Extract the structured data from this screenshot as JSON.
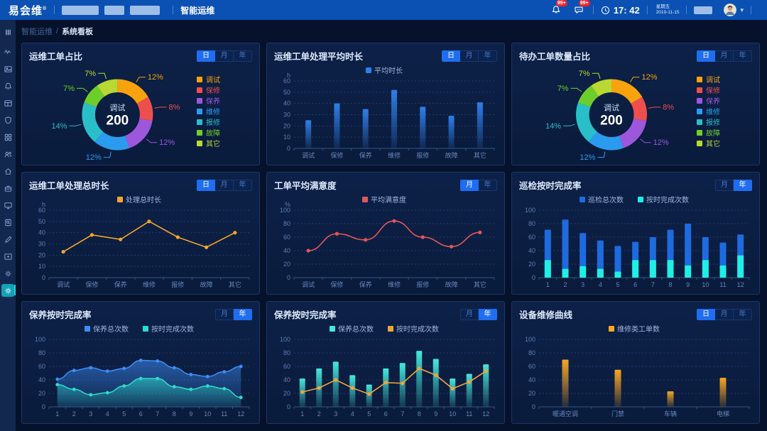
{
  "header": {
    "logo": "易会维",
    "logo_mark": "®",
    "nav_label": "智能运维",
    "bell_badge": "99+",
    "message_badge": "99+",
    "time": "17: 42",
    "weekday": "星期五",
    "date": "2019-11-15"
  },
  "breadcrumb": {
    "parent": "智能运维",
    "separator": "/",
    "current": "系统看板"
  },
  "sidebar": {
    "menu_icon": "menu-icon",
    "items": [
      {
        "icon": "activity-icon"
      },
      {
        "icon": "gallery-icon"
      },
      {
        "icon": "bell-icon"
      },
      {
        "icon": "table-icon"
      },
      {
        "icon": "shield-icon"
      },
      {
        "icon": "apps-icon"
      },
      {
        "icon": "team-icon"
      },
      {
        "icon": "home-icon"
      },
      {
        "icon": "briefcase-icon"
      },
      {
        "icon": "monitor-icon"
      },
      {
        "icon": "doc-search-icon"
      },
      {
        "icon": "pen-icon"
      },
      {
        "icon": "card-icon"
      },
      {
        "icon": "gear-icon"
      },
      {
        "icon": "gear-icon",
        "active": true
      }
    ]
  },
  "panels": [
    {
      "tabs": {
        "labels": [
          "日",
          "月",
          "年"
        ],
        "selected": 0
      }
    },
    {
      "tabs": {
        "labels": [
          "日",
          "月",
          "年"
        ],
        "selected": 0
      }
    },
    {
      "tabs": {
        "labels": [
          "日",
          "月",
          "年"
        ],
        "selected": 0
      }
    },
    {
      "tabs": {
        "labels": [
          "日",
          "月",
          "年"
        ],
        "selected": 0
      }
    },
    {
      "tabs": {
        "labels": [
          "月",
          "年"
        ],
        "selected": 0
      }
    },
    {
      "tabs": {
        "labels": [
          "月",
          "年"
        ],
        "selected": 1
      }
    },
    {
      "tabs": {
        "labels": [
          "月",
          "年"
        ],
        "selected": 1
      }
    },
    {
      "tabs": {
        "labels": [
          "月",
          "年"
        ],
        "selected": 1
      }
    },
    {
      "tabs": {
        "labels": [
          "日",
          "月",
          "年"
        ],
        "selected": 0
      }
    }
  ],
  "chart_data": [
    {
      "type": "pie",
      "title": "运维工单占比",
      "center_label": "调试",
      "center_value": "200",
      "legend_position": "right",
      "series": [
        {
          "name": "调试",
          "pct": 12,
          "color": "#F8A20D"
        },
        {
          "name": "保修",
          "pct": 8,
          "color": "#EF4F4C"
        },
        {
          "name": "保养",
          "pct": 12,
          "color": "#9C57DB"
        },
        {
          "name": "维修",
          "pct": 12,
          "color": "#2B9BEF"
        },
        {
          "name": "报修",
          "pct": 14,
          "color": "#29BFC9"
        },
        {
          "name": "故障",
          "pct": 7,
          "color": "#6ECE29"
        },
        {
          "name": "其它",
          "pct": 7,
          "color": "#B9D831"
        }
      ]
    },
    {
      "type": "bar",
      "title": "运维工单处理平均时长",
      "unit": "h",
      "categories": [
        "调试",
        "保修",
        "保养",
        "维修",
        "报修",
        "故障",
        "其它"
      ],
      "ylim": [
        0,
        60
      ],
      "ystep": 10,
      "series": [
        {
          "name": "平均时长",
          "color": "#2F7FEA",
          "render": "bar",
          "values": [
            25,
            40,
            35,
            52,
            37,
            29,
            41
          ]
        }
      ]
    },
    {
      "type": "pie",
      "title": "待办工单数量占比",
      "center_label": "调试",
      "center_value": "200",
      "legend_position": "right",
      "series": [
        {
          "name": "调试",
          "pct": 12,
          "color": "#F8A20D"
        },
        {
          "name": "保修",
          "pct": 8,
          "color": "#EF4F4C"
        },
        {
          "name": "保养",
          "pct": 12,
          "color": "#9C57DB"
        },
        {
          "name": "维修",
          "pct": 12,
          "color": "#2B9BEF"
        },
        {
          "name": "报修",
          "pct": 14,
          "color": "#29BFC9"
        },
        {
          "name": "故障",
          "pct": 7,
          "color": "#6ECE29"
        },
        {
          "name": "其它",
          "pct": 7,
          "color": "#B9D831"
        }
      ]
    },
    {
      "type": "line",
      "title": "运维工单处理总时长",
      "unit": "h",
      "smooth": false,
      "categories": [
        "调试",
        "保修",
        "保养",
        "维修",
        "报修",
        "故障",
        "其它"
      ],
      "ylim": [
        0,
        60
      ],
      "ystep": 10,
      "series": [
        {
          "name": "处理总时长",
          "color": "#F6A52C",
          "render": "line",
          "values": [
            23,
            38,
            34,
            50,
            36,
            27,
            40
          ]
        }
      ]
    },
    {
      "type": "line",
      "title": "工单平均满意度",
      "unit": "%",
      "smooth": true,
      "categories": [
        "调试",
        "保修",
        "保养",
        "维修",
        "报修",
        "故障",
        "其它"
      ],
      "ylim": [
        0,
        100
      ],
      "ystep": 20,
      "series": [
        {
          "name": "平均满意度",
          "color": "#E25757",
          "render": "line",
          "values": [
            40,
            65,
            56,
            84,
            60,
            46,
            67
          ]
        }
      ]
    },
    {
      "type": "bar",
      "title": "巡检按时完成率",
      "stacked": "overlay",
      "categories": [
        "1",
        "2",
        "3",
        "4",
        "5",
        "6",
        "7",
        "8",
        "9",
        "10",
        "11",
        "12"
      ],
      "ylim": [
        0,
        100
      ],
      "ystep": 20,
      "series": [
        {
          "name": "巡检总次数",
          "color": "#1E6BE0",
          "render": "bar",
          "solid": true,
          "width": 9,
          "values": [
            71,
            86,
            66,
            55,
            47,
            53,
            60,
            71,
            80,
            60,
            52,
            64
          ]
        },
        {
          "name": "按时完成次数",
          "color": "#1FEFE4",
          "render": "bar",
          "solid": true,
          "width": 9,
          "values": [
            26,
            13,
            17,
            13,
            9,
            26,
            26,
            26,
            18,
            26,
            18,
            33
          ]
        }
      ]
    },
    {
      "type": "area",
      "title": "保养按时完成率",
      "smooth": true,
      "categories": [
        "1",
        "2",
        "3",
        "4",
        "5",
        "6",
        "7",
        "8",
        "9",
        "10",
        "11",
        "12"
      ],
      "ylim": [
        0,
        100
      ],
      "ystep": 20,
      "series": [
        {
          "name": "保养总次数",
          "color": "#3E8EF7",
          "render": "area",
          "values": [
            41,
            54,
            58,
            53,
            57,
            69,
            68,
            58,
            48,
            45,
            52,
            60
          ]
        },
        {
          "name": "按时完成次数",
          "color": "#2EDCCB",
          "render": "area",
          "values": [
            33,
            26,
            18,
            21,
            31,
            42,
            42,
            30,
            26,
            31,
            27,
            14
          ]
        }
      ]
    },
    {
      "type": "bar",
      "title": "保养按时完成率",
      "categories": [
        "1",
        "2",
        "3",
        "4",
        "5",
        "6",
        "7",
        "8",
        "9",
        "10",
        "11",
        "12"
      ],
      "ylim": [
        0,
        100
      ],
      "ystep": 20,
      "series": [
        {
          "name": "保养总次数",
          "color": "#46E8DC",
          "render": "bar",
          "width": 8,
          "values": [
            42,
            57,
            67,
            47,
            33,
            57,
            65,
            83,
            71,
            42,
            49,
            63
          ]
        },
        {
          "name": "按时完成次数",
          "color": "#F2A43C",
          "render": "line",
          "values": [
            22,
            28,
            40,
            28,
            19,
            36,
            35,
            57,
            47,
            27,
            37,
            53
          ]
        }
      ]
    },
    {
      "type": "bar",
      "title": "设备维修曲线",
      "categories": [
        "暖通空调",
        "门禁",
        "车辆",
        "电梯"
      ],
      "ylim": [
        0,
        100
      ],
      "ystep": 20,
      "series": [
        {
          "name": "维修类工单数",
          "color": "#F8A623",
          "render": "bar",
          "width": 9,
          "values": [
            70,
            55,
            23,
            43
          ]
        }
      ]
    }
  ]
}
